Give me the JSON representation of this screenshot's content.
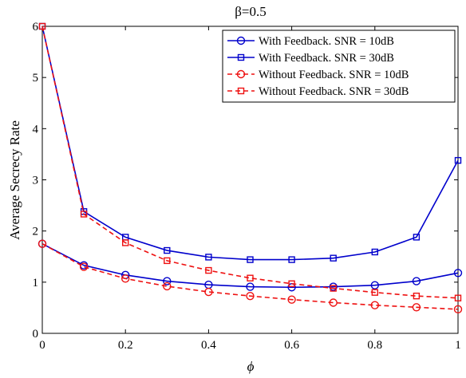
{
  "chart_data": {
    "type": "line",
    "title": "β=0.5",
    "xlabel": "ϕ",
    "ylabel": "Average Secrecy Rate",
    "xlim": [
      0,
      1
    ],
    "ylim": [
      0,
      6
    ],
    "x_ticks": [
      "0",
      "0.2",
      "0.4",
      "0.6",
      "0.8",
      "1"
    ],
    "y_ticks": [
      "0",
      "1",
      "2",
      "3",
      "4",
      "5",
      "6"
    ],
    "grid": false,
    "legend_position": "top-right",
    "x": [
      0,
      0.1,
      0.2,
      0.3,
      0.4,
      0.5,
      0.6,
      0.7,
      0.8,
      0.9,
      1.0
    ],
    "series": [
      {
        "name": "With Feedback. SNR = 10dB",
        "color": "#0000cc",
        "line_style": "solid",
        "marker": "circle",
        "values": [
          1.75,
          1.33,
          1.14,
          1.02,
          0.95,
          0.91,
          0.9,
          0.91,
          0.94,
          1.02,
          1.18
        ]
      },
      {
        "name": "With Feedback. SNR = 30dB",
        "color": "#0000cc",
        "line_style": "solid",
        "marker": "square",
        "values": [
          6.0,
          2.38,
          1.88,
          1.62,
          1.49,
          1.44,
          1.44,
          1.47,
          1.59,
          1.88,
          3.38
        ]
      },
      {
        "name": "Without Feedback. SNR = 10dB",
        "color": "#ee1111",
        "line_style": "dashed",
        "marker": "circle",
        "values": [
          1.75,
          1.3,
          1.07,
          0.92,
          0.81,
          0.73,
          0.66,
          0.6,
          0.55,
          0.51,
          0.47
        ]
      },
      {
        "name": "Without Feedback. SNR = 30dB",
        "color": "#ee1111",
        "line_style": "dashed",
        "marker": "square",
        "values": [
          6.0,
          2.33,
          1.77,
          1.42,
          1.23,
          1.08,
          0.97,
          0.88,
          0.8,
          0.73,
          0.69
        ]
      }
    ]
  }
}
